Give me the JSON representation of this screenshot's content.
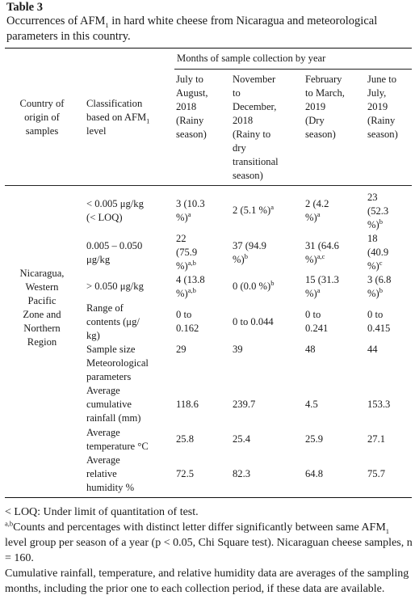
{
  "table": {
    "label": "Table 3",
    "caption_main": "Occurrences of AFM",
    "caption_sub": "1",
    "caption_rest": " in hard white cheese from Nicaragua and meteorological parameters in this country.",
    "spanning_header": "Months of sample collection by year",
    "col_country": [
      "Country of",
      "origin of",
      "samples"
    ],
    "col_class_l1": "Classification",
    "col_class_l2_main": "based on AFM",
    "col_class_l2_sub": "1",
    "col_class_l3": "level",
    "periods": [
      {
        "lines": [
          "July to",
          "August,",
          "2018",
          "(Rainy",
          "season)"
        ]
      },
      {
        "lines": [
          "November",
          "to",
          "December,",
          "2018",
          "(Rainy to",
          "dry",
          "transitional",
          "season)"
        ]
      },
      {
        "lines": [
          "February",
          "to March,",
          "2019",
          "(Dry",
          "season)"
        ]
      },
      {
        "lines": [
          "June to",
          "July,",
          "2019",
          "(Rainy",
          "season)"
        ]
      }
    ],
    "region": [
      "Nicaragua,",
      "Western",
      "Pacific",
      "Zone and",
      "Northern",
      "Region"
    ],
    "rows": {
      "r1": {
        "label": [
          "< 0.005 μg/kg",
          "(< LOQ)"
        ],
        "c1": [
          "3 (10.3",
          "%)"
        ],
        "c1s": "a",
        "c2": "2 (5.1 %)",
        "c2s": "a",
        "c3": [
          "2 (4.2",
          "%)"
        ],
        "c3s": "a",
        "c4": [
          "23",
          "(52.3",
          "%)"
        ],
        "c4s": "b"
      },
      "r2": {
        "label": [
          "0.005 – 0.050",
          "μg/kg"
        ],
        "c1": [
          "22",
          "(75.9",
          "%)"
        ],
        "c1s": "a,b",
        "c2": [
          "37 (94.9",
          "%)"
        ],
        "c2s": "b",
        "c3": [
          "31 (64.6",
          "%)"
        ],
        "c3s": "a,c",
        "c4": [
          "18",
          "(40.9",
          "%)"
        ],
        "c4s": "c"
      },
      "r3": {
        "label": "> 0.050 μg/kg",
        "c1": [
          "4 (13.8",
          "%)"
        ],
        "c1s": "a,b",
        "c2": "0 (0.0 %)",
        "c2s": "b",
        "c3": [
          "15 (31.3",
          "%)"
        ],
        "c3s": "a",
        "c4": [
          "3 (6.8",
          "%)"
        ],
        "c4s": "b"
      },
      "r4": {
        "label": [
          "Range of",
          "contents (μg/",
          "kg)"
        ],
        "c1": [
          "0 to",
          "0.162"
        ],
        "c2": "0 to 0.044",
        "c3": [
          "0 to",
          "0.241"
        ],
        "c4": [
          "0 to",
          "0.415"
        ]
      },
      "r5": {
        "label": "Sample size",
        "c1": "29",
        "c2": "39",
        "c3": "48",
        "c4": "44"
      },
      "r6": {
        "label": [
          "Meteorological",
          "parameters"
        ]
      },
      "r7": {
        "label": [
          "Average",
          "cumulative",
          "rainfall (mm)"
        ],
        "c1": "118.6",
        "c2": "239.7",
        "c3": "4.5",
        "c4": "153.3"
      },
      "r8": {
        "label": [
          "Average",
          "temperature °C"
        ],
        "c1": "25.8",
        "c2": "25.4",
        "c3": "25.9",
        "c4": "27.1"
      },
      "r9": {
        "label": [
          "Average",
          "relative",
          "humidity %"
        ],
        "c1": "72.5",
        "c2": "82.3",
        "c3": "64.8",
        "c4": "75.7"
      }
    }
  },
  "notes": {
    "loq": "< LOQ: Under limit of quantitation of test.",
    "sig_sup": "a,b",
    "sig_part1": "Counts and percentages with distinct letter differ significantly between same AFM",
    "sig_sub": "1",
    "sig_part2": " level group per season of a year (p < 0.05, Chi Square test). Nicaraguan cheese samples, n = 160.",
    "climate": "Cumulative rainfall, temperature, and relative humidity data are averages of the sampling months, including the prior one to each collection period, if these data are available."
  }
}
